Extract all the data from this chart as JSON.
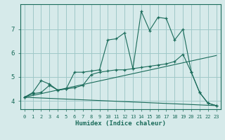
{
  "xlabel": "Humidex (Indice chaleur)",
  "background_color": "#d6eaea",
  "grid_color": "#a0c8c8",
  "line_color": "#1a6b5a",
  "xlim": [
    -0.5,
    23.5
  ],
  "ylim": [
    3.65,
    8.05
  ],
  "yticks": [
    4,
    5,
    6,
    7
  ],
  "xticks": [
    0,
    1,
    2,
    3,
    4,
    5,
    6,
    7,
    8,
    9,
    10,
    11,
    12,
    13,
    14,
    15,
    16,
    17,
    18,
    19,
    20,
    21,
    22,
    23
  ],
  "lines": [
    {
      "x": [
        0,
        1,
        2,
        3,
        4,
        5,
        6,
        7,
        8,
        9,
        10,
        11,
        12,
        13,
        14,
        15,
        16,
        17,
        18,
        19,
        20,
        21,
        22,
        23
      ],
      "y": [
        4.15,
        4.35,
        4.85,
        4.7,
        4.45,
        4.5,
        5.2,
        5.2,
        5.25,
        5.3,
        6.55,
        6.6,
        6.85,
        5.35,
        7.75,
        6.95,
        7.5,
        7.45,
        6.55,
        7.0,
        5.2,
        4.35,
        3.9,
        3.8
      ],
      "marker": true
    },
    {
      "x": [
        0,
        1,
        2,
        3,
        4,
        5,
        6,
        7,
        8,
        9,
        10,
        11,
        12,
        13,
        14,
        15,
        16,
        17,
        18,
        19,
        20,
        21,
        22,
        23
      ],
      "y": [
        4.15,
        4.3,
        4.35,
        4.65,
        4.45,
        4.5,
        4.55,
        4.65,
        5.1,
        5.2,
        5.25,
        5.3,
        5.3,
        5.35,
        5.4,
        5.45,
        5.5,
        5.55,
        5.65,
        5.95,
        5.2,
        4.35,
        3.9,
        3.8
      ],
      "marker": true
    },
    {
      "x": [
        0,
        23
      ],
      "y": [
        4.15,
        5.9
      ],
      "marker": false
    },
    {
      "x": [
        0,
        23
      ],
      "y": [
        4.15,
        3.8
      ],
      "marker": false
    }
  ]
}
